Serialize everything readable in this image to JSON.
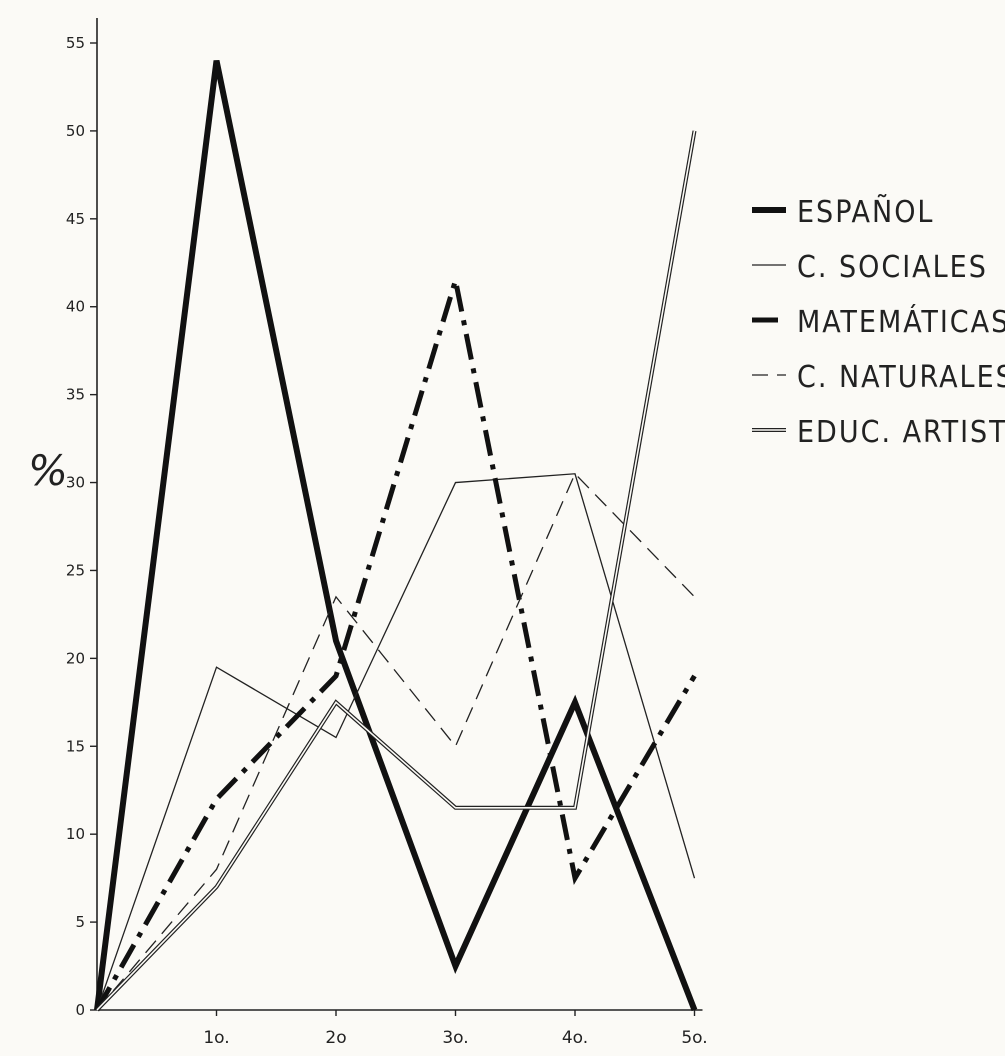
{
  "chart_data": {
    "type": "line",
    "title": "",
    "xlabel": "",
    "ylabel": "%",
    "categories": [
      "",
      "1o.",
      "2o",
      "3o.",
      "4o.",
      "5o."
    ],
    "ylim": [
      0,
      55
    ],
    "yticks": [
      0,
      5,
      10,
      15,
      20,
      25,
      30,
      35,
      40,
      45,
      50,
      55
    ],
    "grid": false,
    "legend_position": "right",
    "series": [
      {
        "name": "ESPAÑOL",
        "style": "thick-solid",
        "values": [
          0,
          54,
          21,
          2.5,
          17.5,
          0
        ]
      },
      {
        "name": "C. SOCIALES",
        "style": "thin-solid",
        "values": [
          0,
          19.5,
          15.5,
          30,
          30.5,
          7.5
        ]
      },
      {
        "name": "MATEMÁTICAS",
        "style": "dash-dot",
        "values": [
          0,
          12,
          19,
          41.5,
          7.5,
          19
        ]
      },
      {
        "name": "C. NATURALES",
        "style": "dashed",
        "values": [
          0,
          8,
          23.5,
          15,
          30.5,
          23.5
        ]
      },
      {
        "name": "EDUC. ARTISTICA",
        "style": "double",
        "values": [
          0,
          7,
          17.5,
          11.5,
          11.5,
          50
        ]
      }
    ]
  }
}
